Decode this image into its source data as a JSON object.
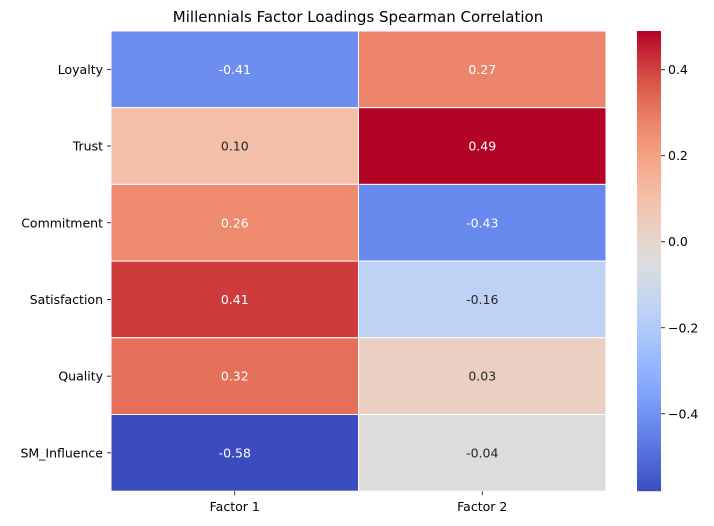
{
  "chart_data": {
    "type": "heatmap",
    "title": "Millennials Factor Loadings Spearman Correlation",
    "xlabel": "",
    "ylabel": "",
    "columns": [
      "Factor 1",
      "Factor 2"
    ],
    "rows": [
      "Loyalty",
      "Trust",
      "Commitment",
      "Satisfaction",
      "Quality",
      "SM_Influence"
    ],
    "values": [
      [
        -0.41,
        0.27
      ],
      [
        0.1,
        0.49
      ],
      [
        0.26,
        -0.43
      ],
      [
        0.41,
        -0.16
      ],
      [
        0.32,
        0.03
      ],
      [
        -0.58,
        -0.04
      ]
    ],
    "value_labels": [
      [
        "-0.41",
        "0.27"
      ],
      [
        "0.10",
        "0.49"
      ],
      [
        "0.26",
        "-0.43"
      ],
      [
        "0.41",
        "-0.16"
      ],
      [
        "0.32",
        "0.03"
      ],
      [
        "-0.58",
        "-0.04"
      ]
    ],
    "colormap": "coolwarm",
    "color_range": [
      -0.58,
      0.49
    ],
    "colorbar": {
      "placement": "right",
      "ticks": [
        0.4,
        0.2,
        0.0,
        -0.2,
        -0.4
      ],
      "tick_labels": [
        "0.4",
        "0.2",
        "0.0",
        "−0.2",
        "−0.4"
      ]
    },
    "cell_borders": "white",
    "grid": false
  }
}
